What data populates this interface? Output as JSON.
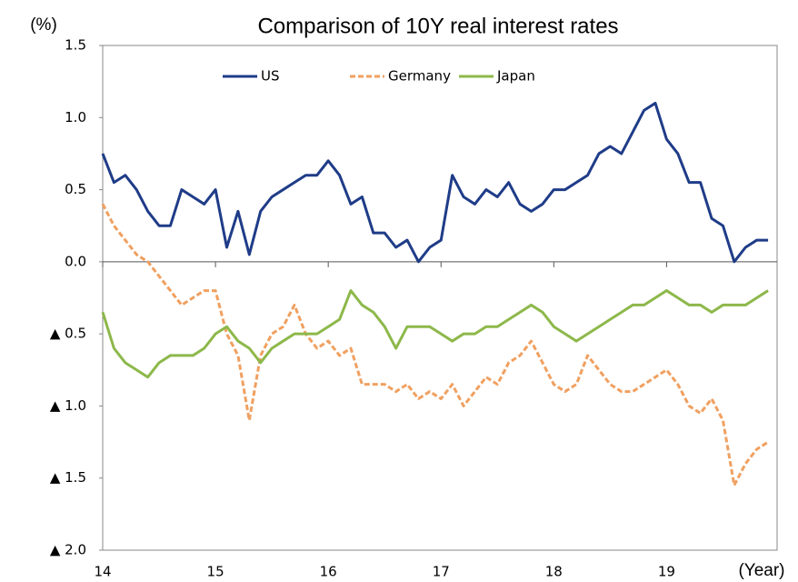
{
  "chart_data": {
    "type": "line",
    "title": "Comparison of 10Y real interest rates",
    "y_label": "(%)",
    "x_label": "(Year)",
    "x": [
      14.0,
      14.1,
      14.2,
      14.3,
      14.4,
      14.5,
      14.6,
      14.7,
      14.8,
      14.9,
      15.0,
      15.1,
      15.2,
      15.3,
      15.4,
      15.5,
      15.6,
      15.7,
      15.8,
      15.9,
      16.0,
      16.1,
      16.2,
      16.3,
      16.4,
      16.5,
      16.6,
      16.7,
      16.8,
      16.9,
      17.0,
      17.1,
      17.2,
      17.3,
      17.4,
      17.5,
      17.6,
      17.7,
      17.8,
      17.9,
      18.0,
      18.1,
      18.2,
      18.3,
      18.4,
      18.5,
      18.6,
      18.7,
      18.8,
      18.9,
      19.0,
      19.1,
      19.2,
      19.3,
      19.4,
      19.5,
      19.6,
      19.7,
      19.8,
      19.9
    ],
    "series": [
      {
        "name": "US",
        "color": "#1f3c88",
        "dashed": false,
        "values": [
          0.75,
          0.55,
          0.6,
          0.5,
          0.35,
          0.25,
          0.25,
          0.5,
          0.45,
          0.4,
          0.5,
          0.1,
          0.35,
          0.05,
          0.35,
          0.45,
          0.5,
          0.55,
          0.6,
          0.6,
          0.7,
          0.6,
          0.4,
          0.45,
          0.2,
          0.2,
          0.1,
          0.15,
          0.0,
          0.1,
          0.15,
          0.6,
          0.45,
          0.4,
          0.5,
          0.45,
          0.55,
          0.4,
          0.35,
          0.4,
          0.5,
          0.5,
          0.55,
          0.6,
          0.75,
          0.8,
          0.75,
          0.9,
          1.05,
          1.1,
          0.85,
          0.75,
          0.55,
          0.55,
          0.3,
          0.25,
          0.0,
          0.1,
          0.15,
          0.15
        ]
      },
      {
        "name": "Germany",
        "color": "#f0a060",
        "dashed": true,
        "values": [
          0.4,
          0.25,
          0.15,
          0.05,
          0.0,
          -0.1,
          -0.2,
          -0.3,
          -0.25,
          -0.2,
          -0.2,
          -0.5,
          -0.65,
          -1.1,
          -0.65,
          -0.5,
          -0.45,
          -0.3,
          -0.5,
          -0.6,
          -0.55,
          -0.65,
          -0.6,
          -0.85,
          -0.85,
          -0.85,
          -0.9,
          -0.85,
          -0.95,
          -0.9,
          -0.95,
          -0.85,
          -1.0,
          -0.9,
          -0.8,
          -0.85,
          -0.7,
          -0.65,
          -0.55,
          -0.7,
          -0.85,
          -0.9,
          -0.85,
          -0.65,
          -0.75,
          -0.85,
          -0.9,
          -0.9,
          -0.85,
          -0.8,
          -0.75,
          -0.85,
          -1.0,
          -1.05,
          -0.95,
          -1.1,
          -1.55,
          -1.4,
          -1.3,
          -1.25
        ]
      },
      {
        "name": "Japan",
        "color": "#8db84a",
        "dashed": false,
        "values": [
          -0.35,
          -0.6,
          -0.7,
          -0.75,
          -0.8,
          -0.7,
          -0.65,
          -0.65,
          -0.65,
          -0.6,
          -0.5,
          -0.45,
          -0.55,
          -0.6,
          -0.7,
          -0.6,
          -0.55,
          -0.5,
          -0.5,
          -0.5,
          -0.45,
          -0.4,
          -0.2,
          -0.3,
          -0.35,
          -0.45,
          -0.6,
          -0.45,
          -0.45,
          -0.45,
          -0.5,
          -0.55,
          -0.5,
          -0.5,
          -0.45,
          -0.45,
          -0.4,
          -0.35,
          -0.3,
          -0.35,
          -0.45,
          -0.5,
          -0.55,
          -0.5,
          -0.45,
          -0.4,
          -0.35,
          -0.3,
          -0.3,
          -0.25,
          -0.2,
          -0.25,
          -0.3,
          -0.3,
          -0.35,
          -0.3,
          -0.3,
          -0.3,
          -0.25,
          -0.2
        ]
      }
    ],
    "xlim": [
      14,
      19.98
    ],
    "xticks": [
      14,
      15,
      16,
      17,
      18,
      19
    ],
    "ylim": [
      -2.0,
      1.5
    ],
    "yticks": [
      {
        "value": 1.5,
        "label": "1.5"
      },
      {
        "value": 1.0,
        "label": "1.0"
      },
      {
        "value": 0.5,
        "label": "0.5"
      },
      {
        "value": 0.0,
        "label": "0.0"
      },
      {
        "value": -0.5,
        "label": "▲ 0.5"
      },
      {
        "value": -1.0,
        "label": "▲ 1.0"
      },
      {
        "value": -1.5,
        "label": "▲ 1.5"
      },
      {
        "value": -2.0,
        "label": "▲ 2.0"
      }
    ],
    "grid": false,
    "legend": "top"
  }
}
